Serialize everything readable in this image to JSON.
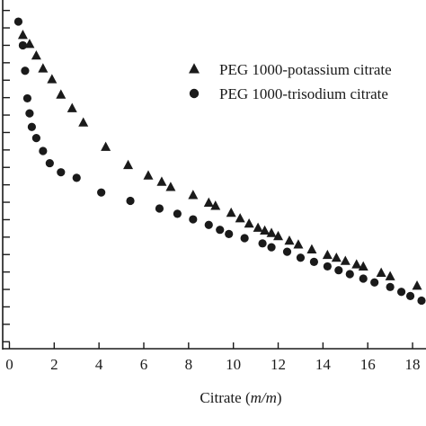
{
  "chart_data": {
    "type": "scatter",
    "xlabel": "Citrate",
    "xlabel_unit": "m/m",
    "xlim": [
      -0.3,
      18.6
    ],
    "ylim": [
      0,
      1
    ],
    "y_scale_note": "y-axis tick labels are cropped out of the image",
    "x_ticks": [
      "0",
      "2",
      "4",
      "6",
      "8",
      "10",
      "12",
      "14",
      "16",
      "18"
    ],
    "x_tick_values": [
      0,
      2,
      4,
      6,
      8,
      10,
      12,
      14,
      16,
      18
    ],
    "y_tick_values": [
      0.02,
      0.07,
      0.12,
      0.17,
      0.22,
      0.27,
      0.32,
      0.37,
      0.42,
      0.47,
      0.52,
      0.57,
      0.62,
      0.67,
      0.72,
      0.77,
      0.82,
      0.87,
      0.92,
      0.97
    ],
    "legend_position": "top-right",
    "colors": {
      "markers": "#1a1a1a",
      "axis": "#1a1a1a",
      "background": "#ffffff"
    },
    "series": [
      {
        "name": "PEG 1000-potassium citrate",
        "marker": "triangle",
        "points": [
          [
            0.6,
            0.899
          ],
          [
            0.9,
            0.873
          ],
          [
            1.2,
            0.84
          ],
          [
            1.5,
            0.803
          ],
          [
            1.9,
            0.772
          ],
          [
            2.3,
            0.728
          ],
          [
            2.8,
            0.689
          ],
          [
            3.3,
            0.648
          ],
          [
            4.3,
            0.578
          ],
          [
            5.3,
            0.526
          ],
          [
            6.2,
            0.496
          ],
          [
            6.8,
            0.478
          ],
          [
            7.2,
            0.463
          ],
          [
            8.2,
            0.44
          ],
          [
            8.9,
            0.418
          ],
          [
            9.2,
            0.409
          ],
          [
            9.9,
            0.389
          ],
          [
            10.3,
            0.373
          ],
          [
            10.7,
            0.358
          ],
          [
            11.1,
            0.346
          ],
          [
            11.4,
            0.338
          ],
          [
            11.7,
            0.331
          ],
          [
            12.0,
            0.322
          ],
          [
            12.5,
            0.309
          ],
          [
            12.9,
            0.298
          ],
          [
            13.5,
            0.284
          ],
          [
            14.2,
            0.268
          ],
          [
            14.6,
            0.26
          ],
          [
            15.0,
            0.251
          ],
          [
            15.5,
            0.241
          ],
          [
            15.8,
            0.235
          ],
          [
            16.6,
            0.217
          ],
          [
            17.0,
            0.207
          ],
          [
            18.2,
            0.18
          ]
        ]
      },
      {
        "name": "PEG 1000-trisodium citrate",
        "marker": "circle",
        "points": [
          [
            0.4,
            0.938
          ],
          [
            0.6,
            0.87
          ],
          [
            0.7,
            0.797
          ],
          [
            0.8,
            0.718
          ],
          [
            0.9,
            0.675
          ],
          [
            1.0,
            0.636
          ],
          [
            1.2,
            0.604
          ],
          [
            1.5,
            0.567
          ],
          [
            1.8,
            0.532
          ],
          [
            2.3,
            0.506
          ],
          [
            3.0,
            0.49
          ],
          [
            4.1,
            0.448
          ],
          [
            5.4,
            0.424
          ],
          [
            6.7,
            0.402
          ],
          [
            7.5,
            0.387
          ],
          [
            8.2,
            0.371
          ],
          [
            8.9,
            0.355
          ],
          [
            9.4,
            0.341
          ],
          [
            9.8,
            0.329
          ],
          [
            10.5,
            0.317
          ],
          [
            11.3,
            0.302
          ],
          [
            11.7,
            0.291
          ],
          [
            12.4,
            0.278
          ],
          [
            13.0,
            0.261
          ],
          [
            13.6,
            0.249
          ],
          [
            14.2,
            0.236
          ],
          [
            14.7,
            0.225
          ],
          [
            15.2,
            0.214
          ],
          [
            15.8,
            0.201
          ],
          [
            16.3,
            0.19
          ],
          [
            17.0,
            0.177
          ],
          [
            17.5,
            0.163
          ],
          [
            17.9,
            0.151
          ],
          [
            18.4,
            0.138
          ]
        ]
      }
    ]
  }
}
